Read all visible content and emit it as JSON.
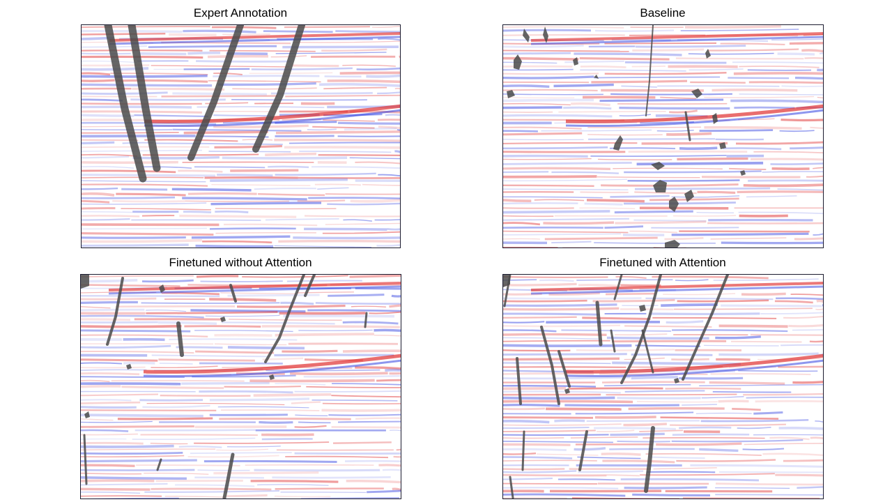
{
  "figure": {
    "panels": [
      {
        "id": "expert",
        "title": "Expert Annotation"
      },
      {
        "id": "baseline",
        "title": "Baseline"
      },
      {
        "id": "no-attn",
        "title": "Finetuned without Attention"
      },
      {
        "id": "attn",
        "title": "Finetuned with Attention"
      }
    ]
  },
  "colors": {
    "positive_amplitude": "#e03030",
    "negative_amplitude": "#3040e0",
    "fault_overlay": "#4a4a4a",
    "frame": "#1a1a2e"
  }
}
